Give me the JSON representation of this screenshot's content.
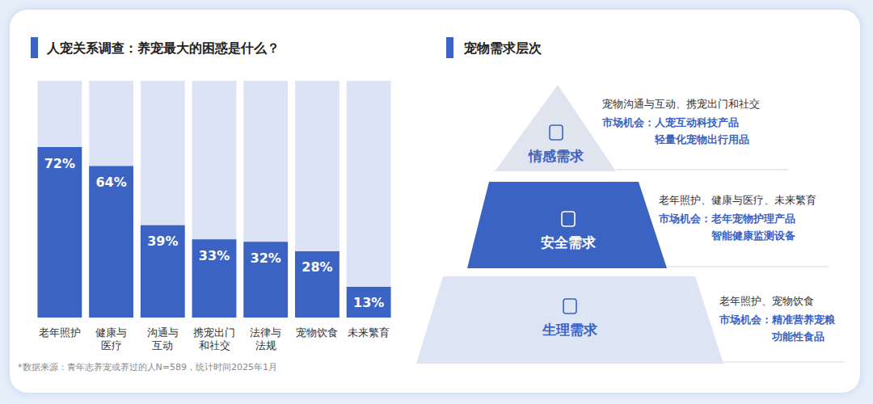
{
  "chart_data": {
    "type": "bar",
    "title": "人宠关系调查：养宠最大的困惑是什么？",
    "categories": [
      "老年照护",
      "健康与医疗",
      "沟通与互动",
      "携宠出门和社交",
      "法律与法规",
      "宠物饮食",
      "未来繁育"
    ],
    "values": [
      72,
      64,
      39,
      33,
      32,
      28,
      13
    ],
    "value_labels": [
      "72%",
      "64%",
      "39%",
      "33%",
      "32%",
      "28%",
      "13%"
    ],
    "color": "#3b63c4",
    "ylim": [
      0,
      100
    ],
    "grid": false,
    "tick_labels": false,
    "data_labels": true,
    "source": "*数据来源：青年志养宠或养过的人N=589，统计时间2025年1月"
  },
  "pyramid": {
    "title": "宠物需求层次",
    "opportunity_label": "市场机会：",
    "layers": [
      {
        "name": "情感需求",
        "needs": "宠物沟通与互动、携宠出门和社交",
        "opportunities": [
          "人宠互动科技产品",
          "轻量化宠物出行用品"
        ]
      },
      {
        "name": "安全需求",
        "needs": "老年照护、健康与医疗、未来繁育",
        "opportunities": [
          "老年宠物护理产品",
          "智能健康监测设备"
        ]
      },
      {
        "name": "生理需求",
        "needs": "老年照护、宠物饮食",
        "opportunities": [
          "精准营养宠粮",
          "功能性食品"
        ]
      }
    ]
  }
}
